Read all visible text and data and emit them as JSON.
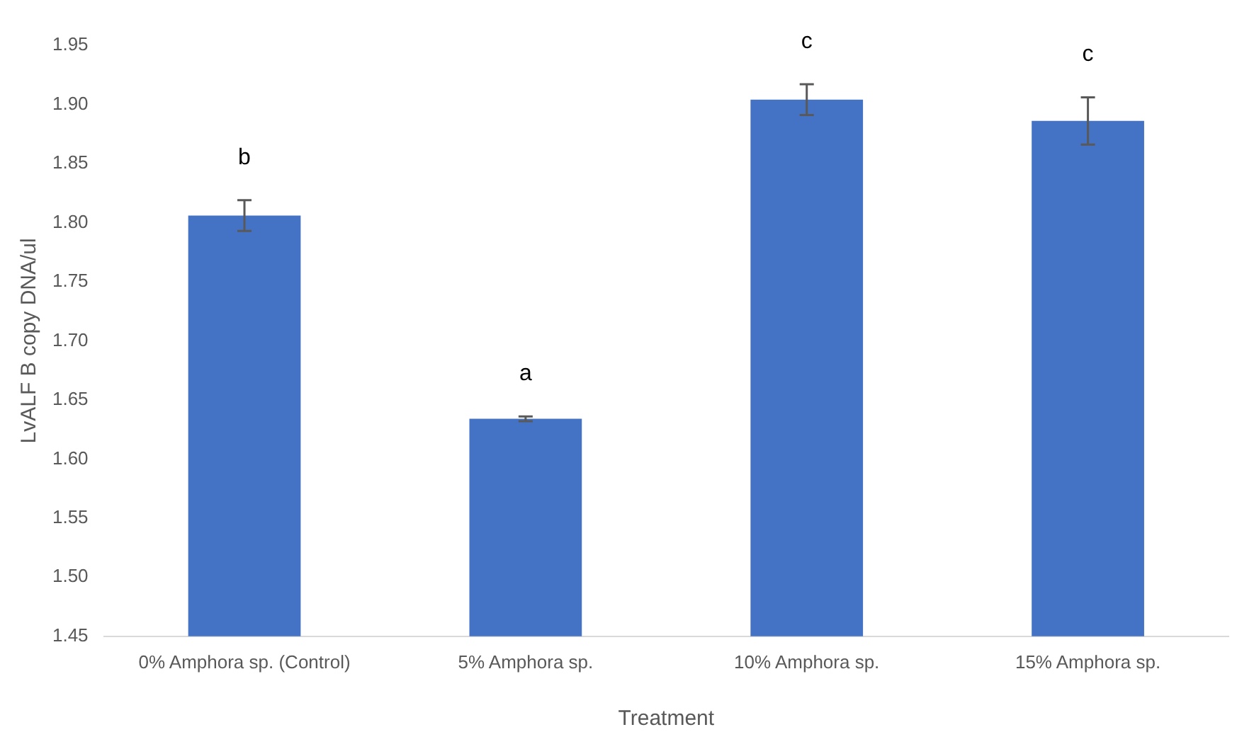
{
  "chart_data": {
    "type": "bar",
    "xlabel": "Treatment",
    "ylabel": "LvALF B copy DNA/ul",
    "categories": [
      "0% Amphora sp. (Control)",
      "5% Amphora sp.",
      "10% Amphora sp.",
      "15% Amphora sp."
    ],
    "values": [
      1.806,
      1.634,
      1.904,
      1.886
    ],
    "errors": [
      0.013,
      0.002,
      0.013,
      0.02
    ],
    "color": "#4472c4",
    "ylim": [
      1.45,
      1.95
    ],
    "yticks": [
      {
        "value": 1.45,
        "label": "1.45"
      },
      {
        "value": 1.5,
        "label": "1.50"
      },
      {
        "value": 1.55,
        "label": "1.55"
      },
      {
        "value": 1.6,
        "label": "1.60"
      },
      {
        "value": 1.65,
        "label": "1.65"
      },
      {
        "value": 1.7,
        "label": "1.70"
      },
      {
        "value": 1.75,
        "label": "1.75"
      },
      {
        "value": 1.8,
        "label": "1.80"
      },
      {
        "value": 1.85,
        "label": "1.85"
      },
      {
        "value": 1.9,
        "label": "1.90"
      },
      {
        "value": 1.95,
        "label": "1.95"
      }
    ],
    "annotations": [
      "b",
      "a",
      "c",
      "c"
    ]
  }
}
